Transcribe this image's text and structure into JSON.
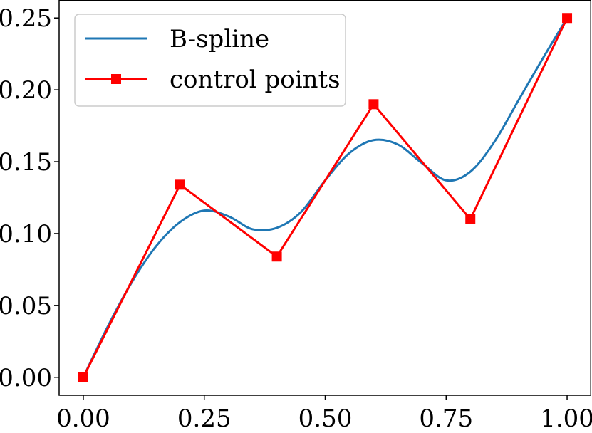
{
  "chart_data": {
    "type": "line",
    "title": "",
    "xlabel": "",
    "ylabel": "",
    "xlim": [
      -0.05,
      1.05
    ],
    "ylim": [
      -0.0125,
      0.2625
    ],
    "x_ticks": [
      "0.00",
      "0.25",
      "0.50",
      "0.75",
      "1.00"
    ],
    "y_ticks": [
      "0.00",
      "0.05",
      "0.10",
      "0.15",
      "0.20",
      "0.25"
    ],
    "legend": {
      "placement": "top-left",
      "entries": [
        "B-spline",
        "control points"
      ]
    },
    "series": [
      {
        "name": "B-spline",
        "color": "#1f77b4",
        "marker": "none",
        "x": [
          0.0,
          0.05,
          0.1,
          0.15,
          0.2,
          0.25,
          0.3,
          0.35,
          0.4,
          0.45,
          0.5,
          0.55,
          0.6,
          0.65,
          0.7,
          0.75,
          0.8,
          0.85,
          0.9,
          0.95,
          1.0
        ],
        "y": [
          0.0,
          0.035,
          0.066,
          0.091,
          0.108,
          0.116,
          0.112,
          0.103,
          0.104,
          0.115,
          0.137,
          0.156,
          0.165,
          0.162,
          0.149,
          0.137,
          0.143,
          0.164,
          0.193,
          0.222,
          0.25
        ]
      },
      {
        "name": "control points",
        "color": "#ff0000",
        "marker": "square",
        "x": [
          0.0,
          0.2,
          0.4,
          0.6,
          0.8,
          1.0
        ],
        "y": [
          0.0,
          0.134,
          0.084,
          0.19,
          0.11,
          0.25
        ]
      }
    ]
  }
}
